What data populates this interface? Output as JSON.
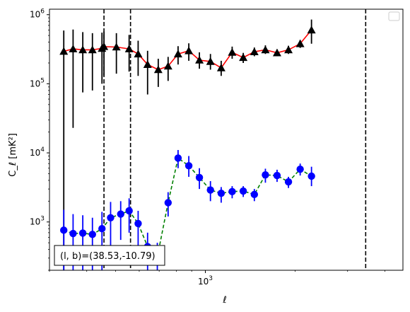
{
  "chart_data": {
    "type": "line",
    "xlabel": "ℓ",
    "ylabel": "C_ℓ [mK²]",
    "x_scale": "log",
    "y_scale": "log",
    "xlim": [
      300,
      4600
    ],
    "ylim": [
      200,
      1200000
    ],
    "x_ticks": [
      {
        "value": 1000,
        "base": "10",
        "exp": "3"
      }
    ],
    "y_ticks": [
      {
        "value": 1000,
        "base": "10",
        "exp": "3"
      },
      {
        "value": 10000,
        "base": "10",
        "exp": "4"
      },
      {
        "value": 100000,
        "base": "10",
        "exp": "5"
      },
      {
        "value": 1000000,
        "base": "10",
        "exp": "6"
      }
    ],
    "grid": false,
    "legend": "top-right (empty)",
    "annotation": "(l, b)=(38.53,-10.79)",
    "annotation_position": "bottom-left",
    "vertical_lines_x": [
      457,
      561,
      3450
    ],
    "series": [
      {
        "style": "solid",
        "color": "#ff0000",
        "marker": "triangle",
        "marker_color": "#000000",
        "errorbar_color": "#000000",
        "points": [
          {
            "x": 335,
            "y": 295000,
            "lo": 200,
            "hi": 590000
          },
          {
            "x": 360,
            "y": 320000,
            "lo": 23000,
            "hi": 610000
          },
          {
            "x": 388,
            "y": 310000,
            "lo": 75000,
            "hi": 560000
          },
          {
            "x": 418,
            "y": 310000,
            "lo": 80000,
            "hi": 540000
          },
          {
            "x": 450,
            "y": 325000,
            "lo": 100000,
            "hi": 550000
          },
          {
            "x": 457,
            "y": 345000,
            "lo": 130000,
            "hi": 570000
          },
          {
            "x": 503,
            "y": 340000,
            "lo": 140000,
            "hi": 540000
          },
          {
            "x": 555,
            "y": 320000,
            "lo": 150000,
            "hi": 510000
          },
          {
            "x": 595,
            "y": 270000,
            "lo": 130000,
            "hi": 420000
          },
          {
            "x": 640,
            "y": 190000,
            "lo": 70000,
            "hi": 300000
          },
          {
            "x": 695,
            "y": 160000,
            "lo": 90000,
            "hi": 230000
          },
          {
            "x": 750,
            "y": 180000,
            "lo": 110000,
            "hi": 245000
          },
          {
            "x": 810,
            "y": 270000,
            "lo": 190000,
            "hi": 350000
          },
          {
            "x": 880,
            "y": 300000,
            "lo": 215000,
            "hi": 385000
          },
          {
            "x": 955,
            "y": 220000,
            "lo": 165000,
            "hi": 285000
          },
          {
            "x": 1040,
            "y": 210000,
            "lo": 160000,
            "hi": 270000
          },
          {
            "x": 1130,
            "y": 170000,
            "lo": 130000,
            "hi": 215000
          },
          {
            "x": 1230,
            "y": 285000,
            "lo": 230000,
            "hi": 345000
          },
          {
            "x": 1340,
            "y": 240000,
            "lo": 200000,
            "hi": 280000
          },
          {
            "x": 1460,
            "y": 290000,
            "lo": 250000,
            "hi": 335000
          },
          {
            "x": 1590,
            "y": 310000,
            "lo": 270000,
            "hi": 360000
          },
          {
            "x": 1740,
            "y": 280000,
            "lo": 250000,
            "hi": 315000
          },
          {
            "x": 1900,
            "y": 310000,
            "lo": 270000,
            "hi": 355000
          },
          {
            "x": 2080,
            "y": 380000,
            "lo": 330000,
            "hi": 430000
          },
          {
            "x": 2270,
            "y": 600000,
            "lo": 380000,
            "hi": 850000
          }
        ]
      },
      {
        "style": "dashed",
        "color": "#008000",
        "marker": "circle",
        "marker_color": "#0000ff",
        "errorbar_color": "#0000ff",
        "points": [
          {
            "x": 335,
            "y": 760,
            "lo": 200,
            "hi": 1500
          },
          {
            "x": 360,
            "y": 680,
            "lo": 200,
            "hi": 1300
          },
          {
            "x": 388,
            "y": 690,
            "lo": 200,
            "hi": 1250
          },
          {
            "x": 418,
            "y": 660,
            "lo": 200,
            "hi": 1150
          },
          {
            "x": 450,
            "y": 800,
            "lo": 200,
            "hi": 1400
          },
          {
            "x": 481,
            "y": 1150,
            "lo": 350,
            "hi": 1950
          },
          {
            "x": 520,
            "y": 1300,
            "lo": 550,
            "hi": 2000
          },
          {
            "x": 555,
            "y": 1450,
            "lo": 700,
            "hi": 2200
          },
          {
            "x": 595,
            "y": 950,
            "lo": 450,
            "hi": 1450
          },
          {
            "x": 640,
            "y": 440,
            "lo": 200,
            "hi": 700
          },
          {
            "x": 690,
            "y": 310,
            "lo": 200,
            "hi": 500
          },
          {
            "x": 750,
            "y": 1900,
            "lo": 1200,
            "hi": 2700
          },
          {
            "x": 810,
            "y": 8400,
            "lo": 6000,
            "hi": 11000
          },
          {
            "x": 880,
            "y": 6500,
            "lo": 4500,
            "hi": 9000
          },
          {
            "x": 955,
            "y": 4400,
            "lo": 3000,
            "hi": 6000
          },
          {
            "x": 1040,
            "y": 2900,
            "lo": 2000,
            "hi": 3900
          },
          {
            "x": 1130,
            "y": 2600,
            "lo": 1900,
            "hi": 3200
          },
          {
            "x": 1230,
            "y": 2750,
            "lo": 2200,
            "hi": 3300
          },
          {
            "x": 1340,
            "y": 2800,
            "lo": 2300,
            "hi": 3300
          },
          {
            "x": 1460,
            "y": 2500,
            "lo": 2000,
            "hi": 3000
          },
          {
            "x": 1590,
            "y": 4800,
            "lo": 3700,
            "hi": 5900
          },
          {
            "x": 1740,
            "y": 4700,
            "lo": 3800,
            "hi": 5700
          },
          {
            "x": 1900,
            "y": 3800,
            "lo": 3100,
            "hi": 4500
          },
          {
            "x": 2080,
            "y": 5800,
            "lo": 4700,
            "hi": 7000
          },
          {
            "x": 2270,
            "y": 4600,
            "lo": 3300,
            "hi": 6300
          }
        ]
      }
    ]
  }
}
